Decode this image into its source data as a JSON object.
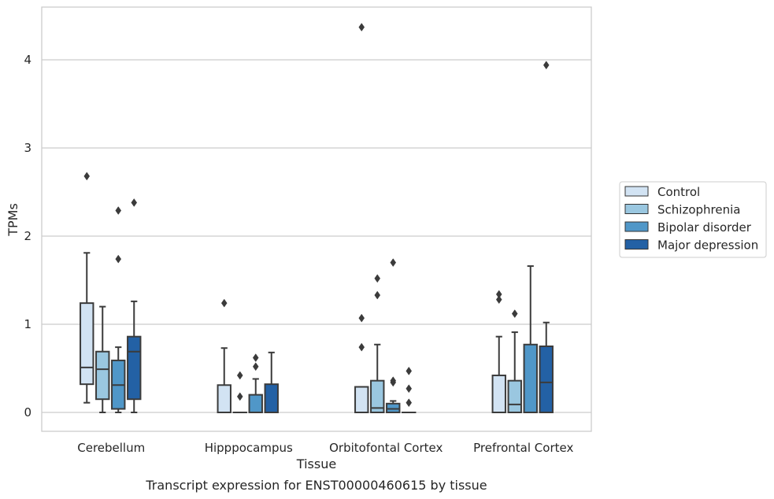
{
  "caption": "Transcript expression for ENST00000460615 by tissue",
  "chart_data": {
    "type": "box",
    "xlabel": "Tissue",
    "ylabel": "TPMs",
    "ylim": [
      -0.21,
      4.6
    ],
    "yticks": [
      0,
      1,
      2,
      3,
      4
    ],
    "grid": true,
    "legend_position": "right",
    "categories": [
      "Cerebellum",
      "Hipppocampus",
      "Orbitofontal Cortex",
      "Prefrontal Cortex"
    ],
    "series": [
      {
        "name": "Control",
        "color": "#d2e3f3",
        "boxes": [
          {
            "whislo": 0.11,
            "q1": 0.32,
            "med": 0.51,
            "q3": 1.24,
            "whishi": 1.81,
            "fliers": [
              2.68
            ]
          },
          {
            "whislo": 0.0,
            "q1": 0.0,
            "med": 0.0,
            "q3": 0.31,
            "whishi": 0.73,
            "fliers": [
              1.24
            ]
          },
          {
            "whislo": 0.0,
            "q1": 0.0,
            "med": 0.0,
            "q3": 0.29,
            "whishi": 0.29,
            "fliers": [
              0.74,
              1.07,
              4.37
            ]
          },
          {
            "whislo": 0.0,
            "q1": 0.0,
            "med": 0.0,
            "q3": 0.42,
            "whishi": 0.86,
            "fliers": [
              1.28,
              1.34
            ]
          }
        ]
      },
      {
        "name": "Schizophrenia",
        "color": "#9ac7e0",
        "boxes": [
          {
            "whislo": 0.0,
            "q1": 0.15,
            "med": 0.49,
            "q3": 0.69,
            "whishi": 1.2,
            "fliers": []
          },
          {
            "whislo": 0.0,
            "q1": 0.0,
            "med": 0.0,
            "q3": 0.0,
            "whishi": 0.0,
            "fliers": [
              0.18,
              0.42
            ]
          },
          {
            "whislo": 0.0,
            "q1": 0.0,
            "med": 0.05,
            "q3": 0.36,
            "whishi": 0.77,
            "fliers": [
              1.33,
              1.52
            ]
          },
          {
            "whislo": 0.0,
            "q1": 0.0,
            "med": 0.09,
            "q3": 0.36,
            "whishi": 0.91,
            "fliers": [
              1.12
            ]
          }
        ]
      },
      {
        "name": "Bipolar disorder",
        "color": "#5097c8",
        "boxes": [
          {
            "whislo": 0.0,
            "q1": 0.04,
            "med": 0.31,
            "q3": 0.59,
            "whishi": 0.74,
            "fliers": [
              1.74,
              2.29
            ]
          },
          {
            "whislo": 0.0,
            "q1": 0.0,
            "med": 0.0,
            "q3": 0.2,
            "whishi": 0.38,
            "fliers": [
              0.52,
              0.62
            ]
          },
          {
            "whislo": 0.0,
            "q1": 0.0,
            "med": 0.04,
            "q3": 0.1,
            "whishi": 0.13,
            "fliers": [
              0.34,
              0.36,
              1.7
            ]
          },
          {
            "whislo": 0.0,
            "q1": 0.0,
            "med": 0.0,
            "q3": 0.77,
            "whishi": 1.66,
            "fliers": []
          }
        ]
      },
      {
        "name": "Major depression",
        "color": "#2361a5",
        "boxes": [
          {
            "whislo": 0.0,
            "q1": 0.15,
            "med": 0.69,
            "q3": 0.86,
            "whishi": 1.26,
            "fliers": [
              2.38
            ]
          },
          {
            "whislo": 0.0,
            "q1": 0.0,
            "med": 0.0,
            "q3": 0.32,
            "whishi": 0.68,
            "fliers": []
          },
          {
            "whislo": 0.0,
            "q1": 0.0,
            "med": 0.0,
            "q3": 0.0,
            "whishi": 0.0,
            "fliers": [
              0.11,
              0.27,
              0.47
            ]
          },
          {
            "whislo": 0.0,
            "q1": 0.0,
            "med": 0.34,
            "q3": 0.75,
            "whishi": 1.02,
            "fliers": [
              3.94
            ]
          }
        ]
      }
    ]
  }
}
